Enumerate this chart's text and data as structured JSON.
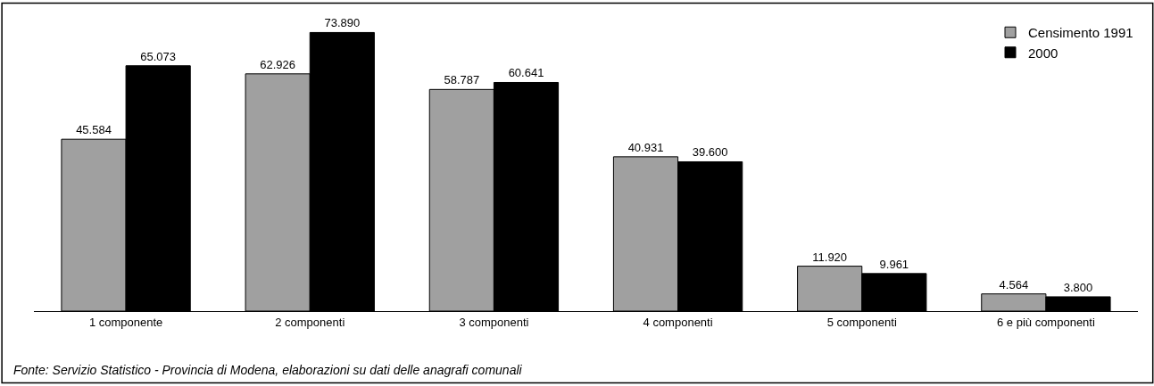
{
  "chart_data": {
    "type": "bar",
    "categories": [
      "1 componente",
      "2 componenti",
      "3 componenti",
      "4 componenti",
      "5 componenti",
      "6 e più componenti"
    ],
    "series": [
      {
        "name": "Censimento 1991",
        "color": "#a0a0a0",
        "values": [
          45584,
          62926,
          58787,
          40931,
          11920,
          4564
        ],
        "value_labels": [
          "45.584",
          "62.926",
          "58.787",
          "40.931",
          "11.920",
          "4.564"
        ]
      },
      {
        "name": "2000",
        "color": "#000000",
        "values": [
          65073,
          73890,
          60641,
          39600,
          9961,
          3800
        ],
        "value_labels": [
          "65.073",
          "73.890",
          "60.641",
          "39.600",
          "9.961",
          "3.800"
        ]
      }
    ],
    "legend": "top right",
    "annotations": [
      "Fonte: Servizio Statistico - Provincia di Modena, elaborazioni su dati delle anagrafi comunali"
    ]
  }
}
